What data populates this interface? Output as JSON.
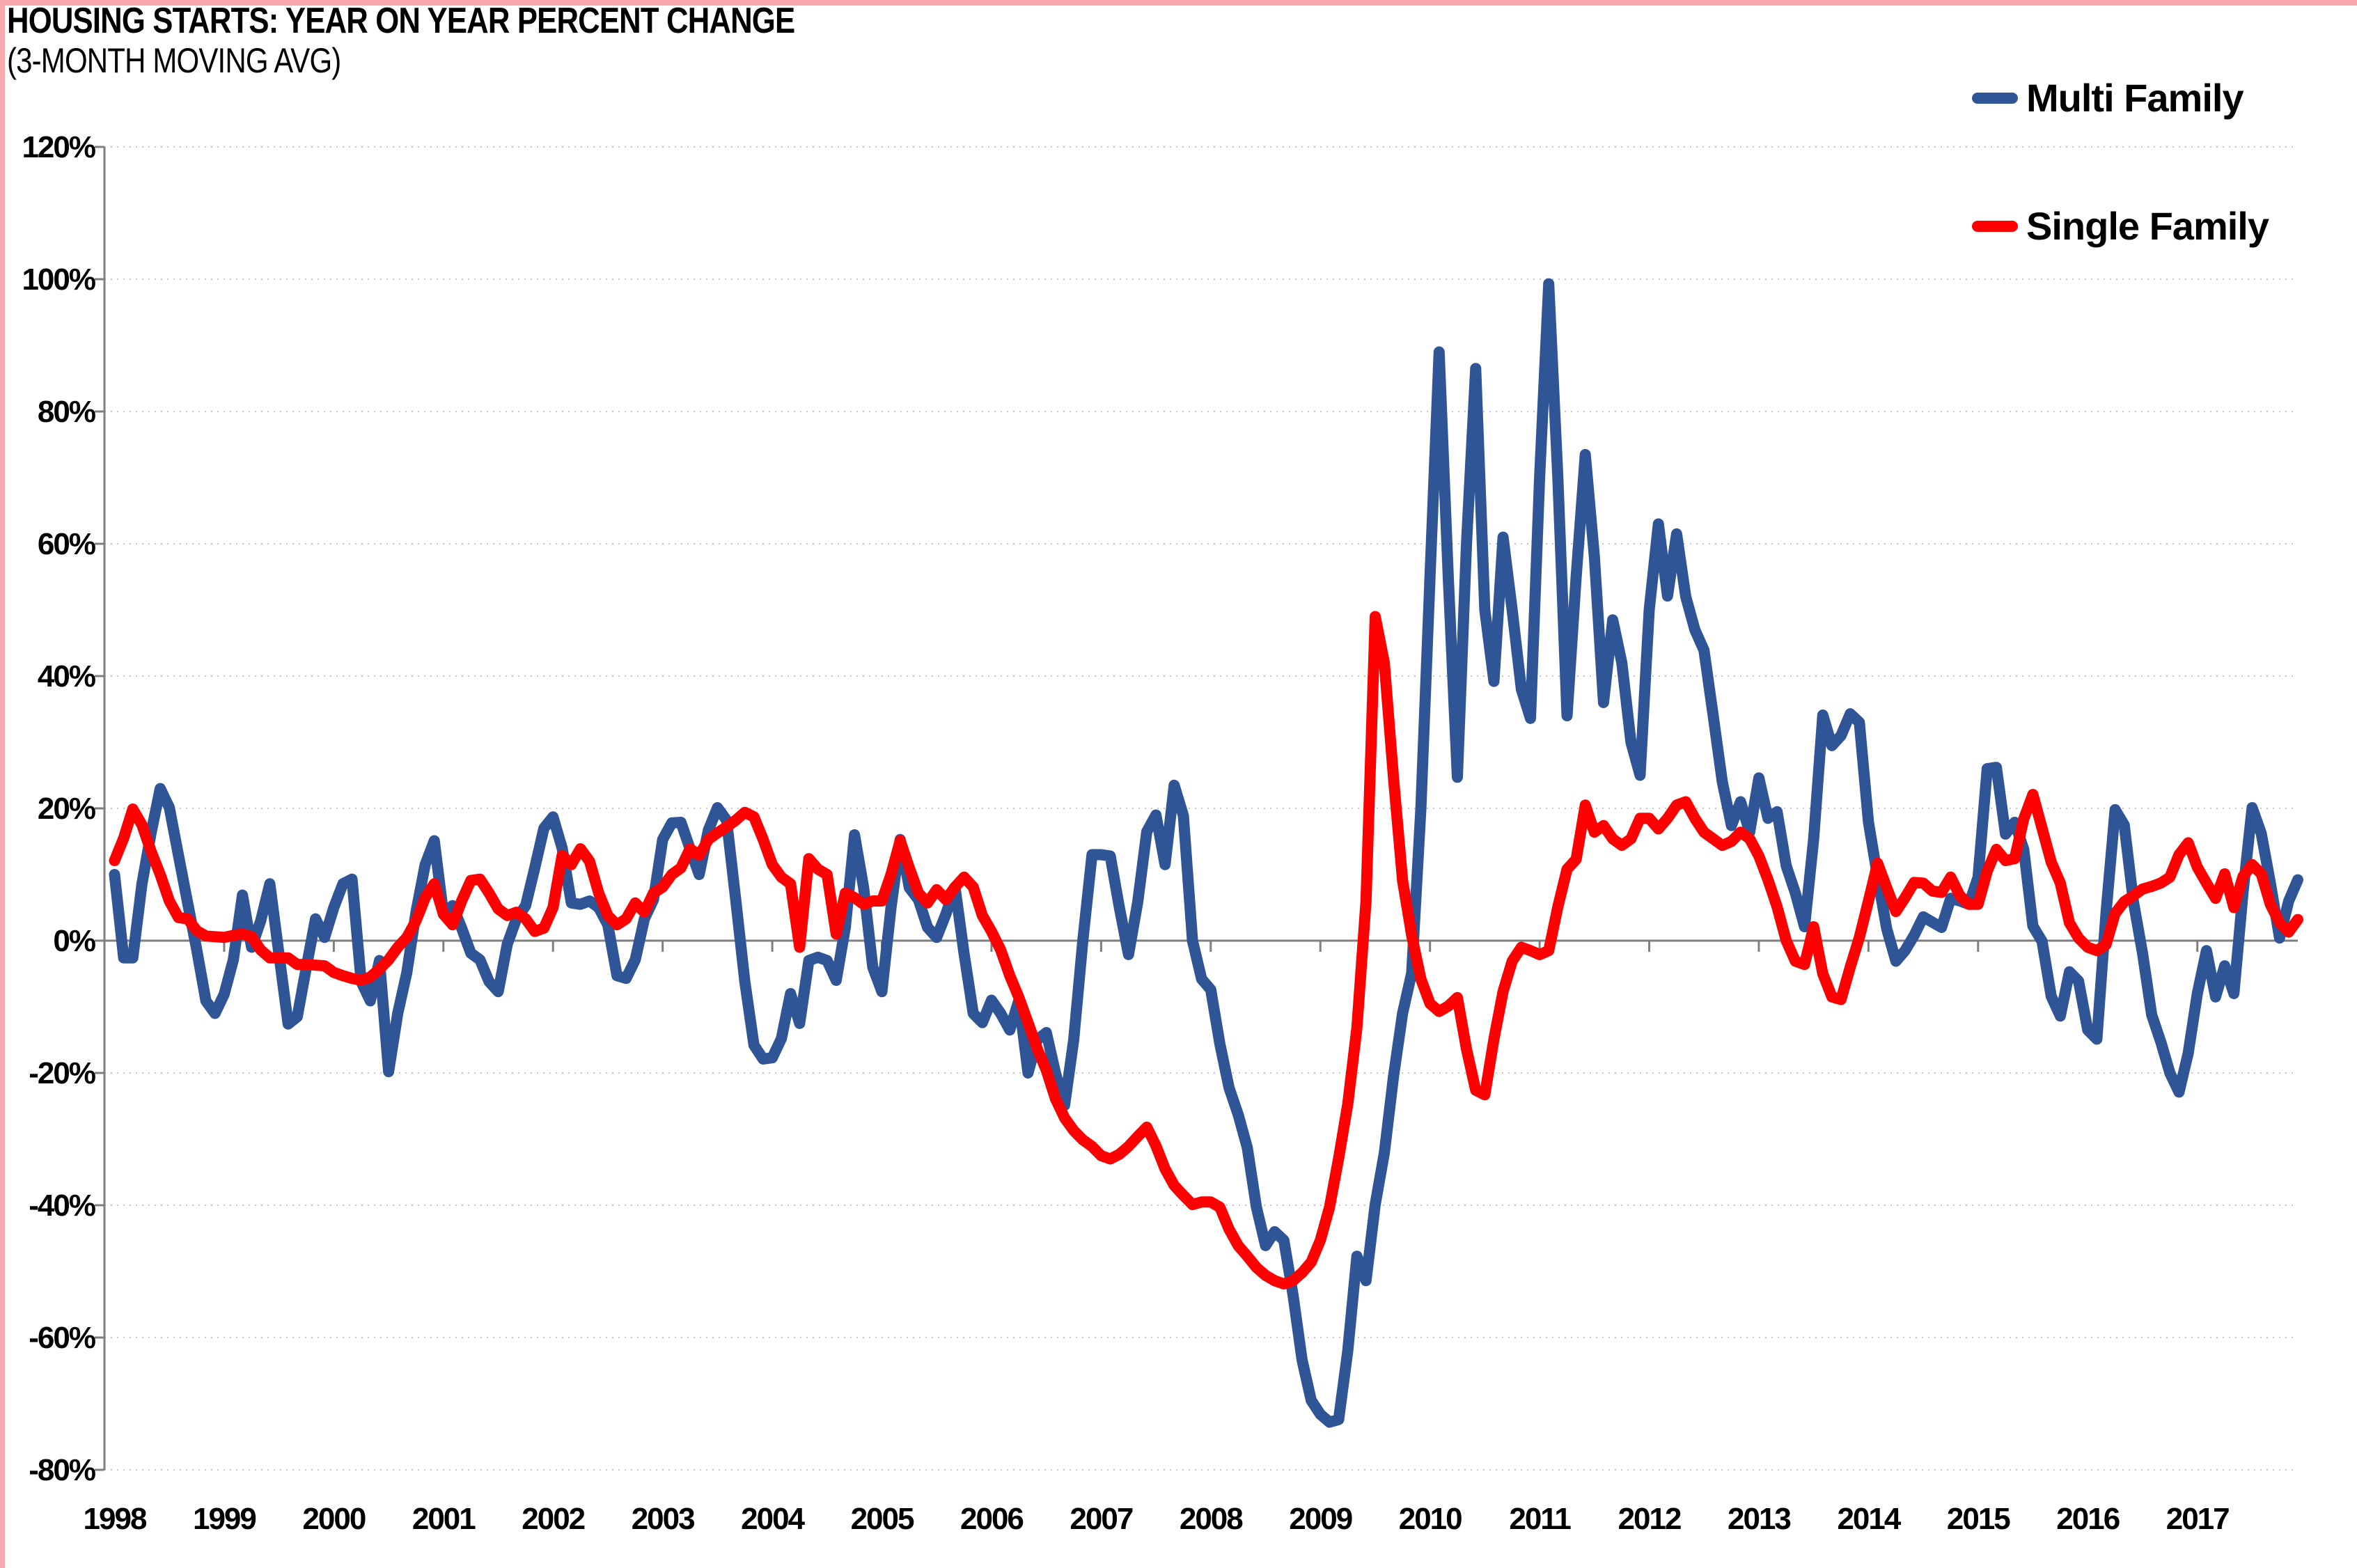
{
  "page": {
    "title": "HOUSING STARTS: YEAR ON YEAR PERCENT CHANGE",
    "subtitle": "(3-MONTH MOVING AVG)"
  },
  "legend": [
    {
      "label": "Multi Family",
      "color": "#2F5597"
    },
    {
      "label": "Single Family",
      "color": "#FF0000"
    }
  ],
  "colors": {
    "border_pink": "#F9A8B0",
    "grid": "#C6C6C6",
    "axis": "#7F7F7F",
    "text": "#000000",
    "multi_family": "#2F5597",
    "single_family": "#FF0000"
  },
  "chart_data": {
    "type": "line",
    "title": "HOUSING STARTS: YEAR ON YEAR PERCENT CHANGE (3-MONTH MOVING AVG)",
    "xlabel": "",
    "ylabel": "Year on year percent change",
    "frequency": "monthly",
    "x_start": "1998-01",
    "x_end": "2017-12",
    "year_labels": [
      1998,
      1999,
      2000,
      2001,
      2002,
      2003,
      2004,
      2005,
      2006,
      2007,
      2008,
      2009,
      2010,
      2011,
      2012,
      2013,
      2014,
      2015,
      2016,
      2017
    ],
    "ylim": [
      -80,
      120
    ],
    "ytick_step": 20,
    "yticks": [
      {
        "v": 120,
        "label": "120%"
      },
      {
        "v": 100,
        "label": "100%"
      },
      {
        "v": 80,
        "label": "80%"
      },
      {
        "v": 60,
        "label": "60%"
      },
      {
        "v": 40,
        "label": "40%"
      },
      {
        "v": 20,
        "label": "20%"
      },
      {
        "v": 0,
        "label": "0%"
      },
      {
        "v": -20,
        "label": "-20%"
      },
      {
        "v": -40,
        "label": "-40%"
      },
      {
        "v": -60,
        "label": "-60%"
      },
      {
        "v": -80,
        "label": "-80%"
      }
    ],
    "grid": "horizontal-dotted",
    "legend_position": "top-right",
    "series": [
      {
        "name": "Multi Family",
        "color": "#2F5597",
        "values": [
          10,
          -2.6,
          -2.6,
          8.6,
          16.3,
          23,
          20.1,
          12.9,
          5.7,
          -1.4,
          -9.1,
          -11,
          -8.1,
          -2.9,
          6.9,
          -1,
          3,
          8.6,
          -2,
          -12.6,
          -11.5,
          -4,
          3.3,
          0.5,
          5,
          8.6,
          9.3,
          -6.2,
          -9.1,
          -3,
          -19.8,
          -11,
          -4.8,
          4.3,
          11.5,
          15.1,
          4,
          5.3,
          1.9,
          -1.9,
          -2.9,
          -6.2,
          -7.7,
          -0.5,
          3.3,
          5.3,
          11,
          17,
          18.7,
          14,
          5.7,
          5.5,
          6,
          5,
          2.4,
          -5.3,
          -5.7,
          -2.9,
          3.3,
          6.2,
          15.3,
          17.8,
          17.9,
          13.9,
          10,
          16.7,
          20.1,
          18.2,
          6.2,
          -6.2,
          -15.8,
          -17.9,
          -17.7,
          -14.8,
          -8,
          -12.5,
          -3,
          -2.5,
          -3,
          -6,
          2,
          16,
          8,
          -4,
          -7.7,
          5,
          15.3,
          8,
          6.2,
          2,
          0.5,
          4,
          8.1,
          -2,
          -11,
          -12.4,
          -9,
          -11,
          -13.5,
          -9,
          -20,
          -15,
          -13.9,
          -20,
          -24.9,
          -15,
          0,
          13,
          13,
          12.8,
          5,
          -2.1,
          5.8,
          16.5,
          19,
          11.5,
          23.5,
          18.9,
          0,
          -5.8,
          -7.4,
          -15.6,
          -22.2,
          -26.3,
          -31.3,
          -40.3,
          -46.1,
          -44,
          -45.3,
          -53.5,
          -63.4,
          -69.5,
          -71.6,
          -72.8,
          -72.4,
          -62,
          -47.7,
          -51.4,
          -39.9,
          -32.1,
          -20.6,
          -11,
          -4.9,
          20,
          55,
          89,
          55,
          24.7,
          60,
          86.5,
          50,
          39.2,
          61,
          50,
          38,
          33.6,
          70,
          99.3,
          70,
          34,
          55,
          73.5,
          58,
          36,
          48.5,
          42,
          30,
          25,
          50,
          63,
          52.1,
          61.5,
          52,
          47,
          43.9,
          34,
          24,
          17.4,
          21,
          16.4,
          24.6,
          18.5,
          19.5,
          11.3,
          7.2,
          2.1,
          15.4,
          34.1,
          29.5,
          31,
          34.3,
          33,
          17.9,
          9.6,
          1.8,
          -3.1,
          -1.5,
          0.8,
          3.6,
          2.8,
          2,
          6.4,
          6,
          5.5,
          9.6,
          26,
          26.2,
          16.1,
          17.9,
          13.8,
          2.2,
          -0.1,
          -8.4,
          -11.4,
          -4.7,
          -6.1,
          -13.5,
          -14.9,
          4.1,
          19.8,
          17.5,
          5.9,
          -1.9,
          -11.2,
          -15.3,
          -20,
          -22.9,
          -17,
          -8,
          -1.5,
          -8.5,
          -3.8,
          -8,
          7.3,
          20.1,
          16.2,
          8.7,
          0.4,
          6,
          9.2
        ]
      },
      {
        "name": "Single Family",
        "color": "#FF0000",
        "values": [
          12.1,
          15.5,
          19.9,
          17.5,
          13.5,
          10,
          6,
          3.5,
          3.3,
          1.5,
          0.7,
          0.6,
          0.5,
          0.8,
          1,
          0.6,
          -1.4,
          -2.6,
          -2.6,
          -2.6,
          -3.6,
          -3.6,
          -3.7,
          -3.8,
          -4.8,
          -5.3,
          -5.7,
          -6,
          -5.5,
          -4.3,
          -2.9,
          -1,
          0.5,
          3,
          6.5,
          8.6,
          4,
          2.4,
          6,
          9.1,
          9.3,
          7.2,
          4.8,
          3.8,
          4.3,
          3.3,
          1.4,
          1.9,
          5,
          12.9,
          11.5,
          13.9,
          12,
          7.2,
          3.8,
          2.4,
          3.3,
          5.7,
          4.3,
          7.2,
          8.1,
          10,
          11,
          13.9,
          12.9,
          15.3,
          16.3,
          17.2,
          18.2,
          19.4,
          18.7,
          15.3,
          11.5,
          9.6,
          8.6,
          -1,
          12.4,
          10.8,
          10,
          1,
          7.2,
          6.5,
          5.5,
          6,
          6,
          10,
          15.1,
          11,
          7.2,
          5.7,
          7.7,
          6.2,
          8.1,
          9.6,
          8.1,
          3.8,
          1.4,
          -1.4,
          -5.3,
          -8.6,
          -12.4,
          -16.3,
          -19.6,
          -23.9,
          -26.8,
          -28.7,
          -30.1,
          -31.1,
          -32.5,
          -33,
          -32.3,
          -31.1,
          -29.6,
          -28.2,
          -31,
          -34.5,
          -37,
          -38.5,
          -39.9,
          -39.5,
          -39.5,
          -40.3,
          -43.6,
          -46.1,
          -47.7,
          -49.4,
          -50.6,
          -51.4,
          -51.9,
          -51.4,
          -50.2,
          -48.6,
          -45.3,
          -40.3,
          -32.9,
          -24.7,
          -13.2,
          6,
          49,
          42,
          24.7,
          9.1,
          0.8,
          -5.8,
          -9.5,
          -10.7,
          -9.9,
          -8.6,
          -16.4,
          -22.6,
          -23.3,
          -14.9,
          -7.7,
          -3.1,
          -1,
          -1.5,
          -2.1,
          -1.5,
          5.1,
          10.8,
          12.3,
          20.5,
          16.4,
          17.4,
          15.4,
          14.4,
          15.4,
          18.5,
          18.5,
          16.9,
          18.5,
          20.5,
          21,
          18.5,
          16.4,
          15.4,
          14.4,
          15,
          16.4,
          15.4,
          12.8,
          9.2,
          5.1,
          0,
          -3.1,
          -3.6,
          2.1,
          -5,
          -8.5,
          -8.9,
          -4,
          0.5,
          6,
          11.7,
          8,
          4.4,
          6.5,
          8.8,
          8.7,
          7.5,
          7.3,
          9.6,
          6.8,
          5.5,
          5.5,
          10.5,
          13.8,
          12.1,
          12.4,
          18.4,
          22.1,
          17,
          11.9,
          8.7,
          2.7,
          0.4,
          -1,
          -1.5,
          -0.6,
          4.1,
          5.9,
          6.8,
          7.8,
          8.2,
          8.7,
          9.6,
          13,
          14.8,
          11.1,
          8.7,
          6.4,
          10.1,
          5,
          9.7,
          11.5,
          10.1,
          5.5,
          2.7,
          1.3,
          3.2
        ]
      }
    ]
  }
}
